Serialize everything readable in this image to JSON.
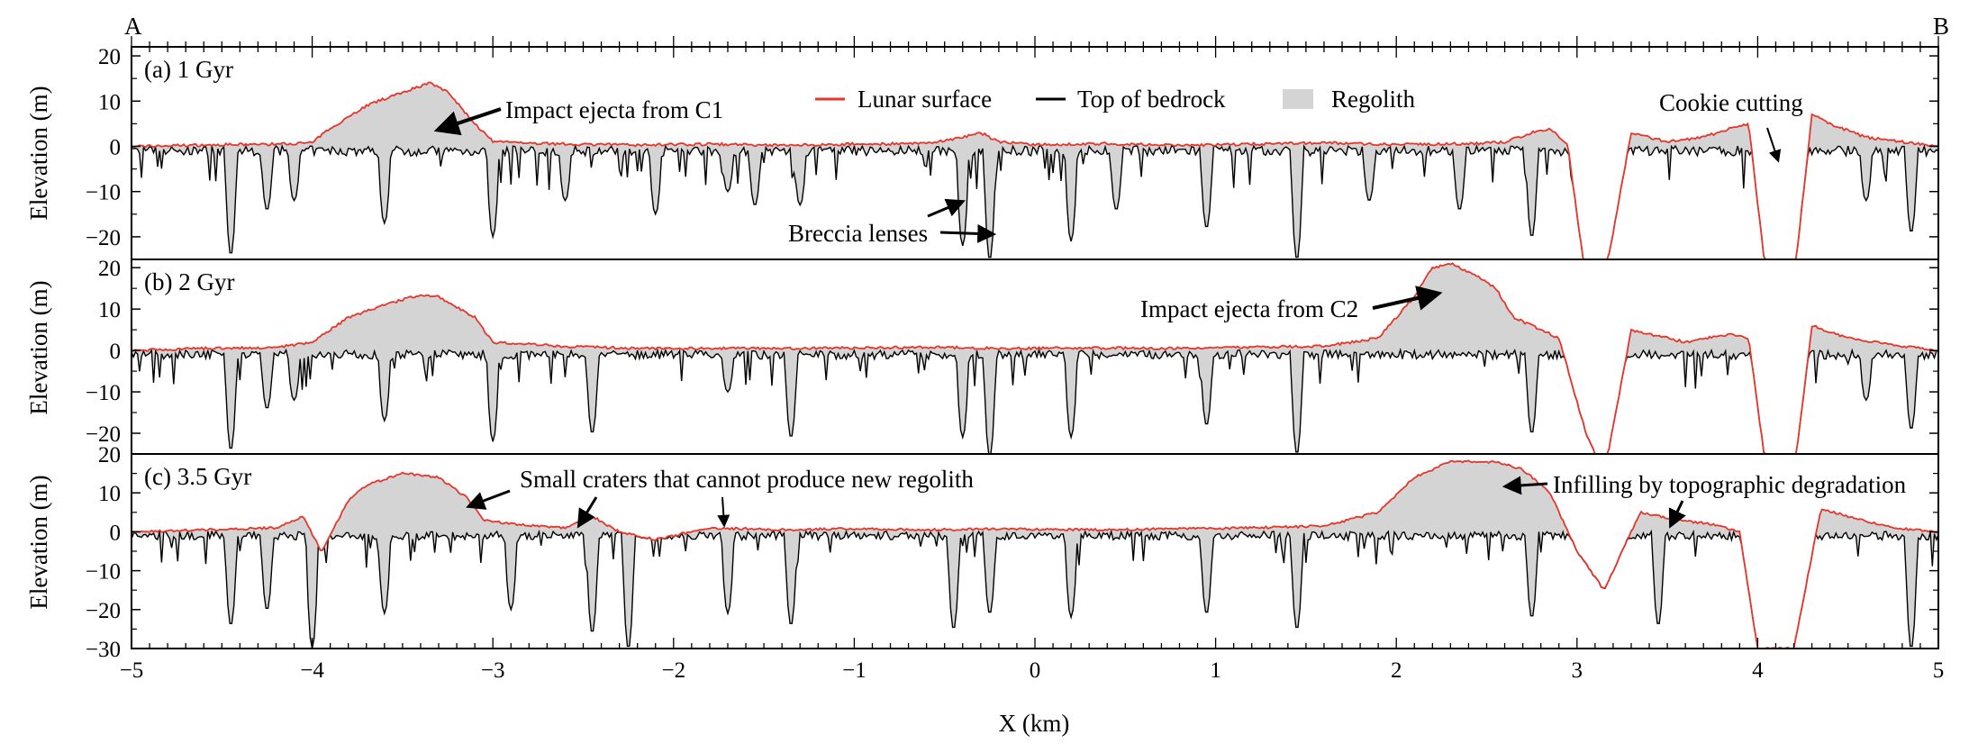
{
  "corner_labels": {
    "left": "A",
    "right": "B"
  },
  "legend": {
    "surface": "Lunar surface",
    "bedrock": "Top of bedrock",
    "regolith": "Regolith"
  },
  "colors": {
    "surface": "#e8352a",
    "bedrock": "#000000",
    "regolith": "#d4d4d4"
  },
  "axes": {
    "x_label": "X (km)",
    "y_label": "Elevation (m)",
    "x_ticks": [
      "−5",
      "−4",
      "−3",
      "−2",
      "−1",
      "0",
      "1",
      "2",
      "3",
      "4",
      "5"
    ]
  },
  "panels": [
    {
      "label": "(a) 1 Gyr",
      "y_ticks": [
        "20",
        "10",
        "0",
        "−10",
        "−20"
      ],
      "annotations": [
        {
          "text": "Impact ejecta from C1"
        },
        {
          "text": "Breccia lenses"
        },
        {
          "text": "Cookie cutting"
        }
      ]
    },
    {
      "label": "(b) 2 Gyr",
      "y_ticks": [
        "20",
        "10",
        "0",
        "−10",
        "−20"
      ],
      "annotations": [
        {
          "text": "Impact ejecta from C2"
        }
      ]
    },
    {
      "label": "(c) 3.5 Gyr",
      "y_ticks": [
        "20",
        "10",
        "0",
        "−10",
        "−20",
        "−30"
      ],
      "annotations": [
        {
          "text": "Small craters that cannot produce new regolith"
        },
        {
          "text": "Infilling by topographic degradation"
        }
      ]
    }
  ],
  "chart_data": {
    "type": "area",
    "xlabel": "X (km)",
    "ylabel": "Elevation (m)",
    "xlim": [
      -5,
      5
    ],
    "ylim": [
      -30,
      22
    ],
    "series_names": [
      "Lunar surface",
      "Top of bedrock",
      "Regolith"
    ],
    "panels": [
      {
        "time": "1 Gyr",
        "surface": {
          "x": [
            -5,
            -4.6,
            -4.2,
            -4.0,
            -3.9,
            -3.7,
            -3.5,
            -3.35,
            -3.25,
            -3.1,
            -3.0,
            -2.6,
            -2.2,
            -1.8,
            -1.4,
            -1.0,
            -0.6,
            -0.4,
            -0.3,
            -0.2,
            0,
            0.4,
            0.8,
            1.2,
            1.6,
            2.0,
            2.4,
            2.6,
            2.75,
            2.85,
            2.95,
            3.05,
            3.15,
            3.3,
            3.5,
            3.7,
            3.85,
            3.95,
            4.05,
            4.12,
            4.2,
            4.3,
            4.4,
            4.6,
            4.8,
            5
          ],
          "y": [
            0,
            0.3,
            0.5,
            0.8,
            4,
            9,
            12,
            14,
            12,
            5,
            1,
            0.5,
            0.3,
            0.5,
            0.2,
            0.5,
            0.6,
            2,
            3,
            1,
            0.3,
            0.6,
            0.2,
            0.5,
            0.8,
            0.4,
            0.6,
            0.9,
            3,
            4,
            0,
            -30,
            -30,
            3,
            1,
            2,
            4,
            5,
            -30,
            -30,
            -30,
            7,
            5,
            2,
            1,
            0
          ]
        },
        "bedrock_craters": [
          {
            "x": -4.45,
            "depth": -24
          },
          {
            "x": -4.25,
            "depth": -14
          },
          {
            "x": -4.1,
            "depth": -12
          },
          {
            "x": -3.6,
            "depth": -17
          },
          {
            "x": -3.0,
            "depth": -20
          },
          {
            "x": -2.6,
            "depth": -12
          },
          {
            "x": -2.1,
            "depth": -15
          },
          {
            "x": -1.7,
            "depth": -10
          },
          {
            "x": -1.55,
            "depth": -13
          },
          {
            "x": -1.3,
            "depth": -13
          },
          {
            "x": -0.4,
            "depth": -22
          },
          {
            "x": -0.25,
            "depth": -25
          },
          {
            "x": 0.2,
            "depth": -21
          },
          {
            "x": 0.45,
            "depth": -14
          },
          {
            "x": 0.95,
            "depth": -18
          },
          {
            "x": 1.45,
            "depth": -25
          },
          {
            "x": 1.85,
            "depth": -12
          },
          {
            "x": 2.35,
            "depth": -14
          },
          {
            "x": 2.75,
            "depth": -20
          },
          {
            "x": 4.6,
            "depth": -12
          },
          {
            "x": 4.85,
            "depth": -19
          }
        ]
      },
      {
        "time": "2 Gyr",
        "surface": {
          "x": [
            -5,
            -4.6,
            -4.2,
            -4.0,
            -3.8,
            -3.6,
            -3.4,
            -3.3,
            -3.1,
            -3.0,
            -2.6,
            -2.2,
            -1.8,
            -1.4,
            -1.0,
            -0.6,
            -0.2,
            0.4,
            0.8,
            1.2,
            1.6,
            1.9,
            2.1,
            2.2,
            2.3,
            2.45,
            2.55,
            2.65,
            2.75,
            2.9,
            3.05,
            3.15,
            3.3,
            3.6,
            3.85,
            3.95,
            4.05,
            4.2,
            4.3,
            4.5,
            4.8,
            5
          ],
          "y": [
            0,
            0.5,
            0.7,
            2,
            8,
            11,
            13.5,
            13,
            8,
            2,
            1,
            0.5,
            0.5,
            0.5,
            0.6,
            0.8,
            0.5,
            0.6,
            0.5,
            0.8,
            1.0,
            3,
            13,
            20,
            21,
            18,
            15,
            8,
            6,
            3,
            -20,
            -30,
            5,
            2,
            4,
            3,
            -30,
            -30,
            6,
            3,
            1,
            0
          ]
        },
        "bedrock_craters": [
          {
            "x": -4.45,
            "depth": -24
          },
          {
            "x": -4.25,
            "depth": -14
          },
          {
            "x": -4.1,
            "depth": -12
          },
          {
            "x": -3.6,
            "depth": -17
          },
          {
            "x": -3.0,
            "depth": -22
          },
          {
            "x": -2.45,
            "depth": -20
          },
          {
            "x": -1.7,
            "depth": -10
          },
          {
            "x": -1.35,
            "depth": -21
          },
          {
            "x": -0.4,
            "depth": -21
          },
          {
            "x": -0.25,
            "depth": -26
          },
          {
            "x": 0.2,
            "depth": -21
          },
          {
            "x": 0.95,
            "depth": -18
          },
          {
            "x": 1.45,
            "depth": -25
          },
          {
            "x": 2.75,
            "depth": -20
          },
          {
            "x": 4.6,
            "depth": -12
          },
          {
            "x": 4.85,
            "depth": -19
          }
        ]
      },
      {
        "time": "3.5 Gyr",
        "surface": {
          "x": [
            -5,
            -4.6,
            -4.2,
            -4.05,
            -3.95,
            -3.8,
            -3.7,
            -3.5,
            -3.3,
            -3.15,
            -3.05,
            -2.9,
            -2.6,
            -2.45,
            -2.3,
            -2.1,
            -1.8,
            -1.4,
            -1.0,
            -0.6,
            -0.2,
            0.4,
            0.8,
            1.2,
            1.6,
            1.9,
            2.1,
            2.3,
            2.55,
            2.7,
            2.85,
            3.0,
            3.15,
            3.35,
            3.55,
            3.75,
            3.9,
            4.0,
            4.2,
            4.35,
            4.5,
            4.75,
            5
          ],
          "y": [
            0,
            0.5,
            1,
            4,
            -5,
            8,
            12,
            15,
            14,
            9,
            3,
            2,
            1,
            4,
            0,
            -2,
            1,
            0.5,
            0.8,
            0.5,
            0.7,
            0.5,
            0.8,
            1,
            1.5,
            5,
            14,
            18,
            18,
            16,
            10,
            -5,
            -15,
            5,
            3,
            2,
            0,
            -30,
            -30,
            6,
            4,
            1,
            0
          ]
        },
        "bedrock_craters": [
          {
            "x": -4.45,
            "depth": -24
          },
          {
            "x": -4.25,
            "depth": -20
          },
          {
            "x": -4.0,
            "depth": -30
          },
          {
            "x": -3.6,
            "depth": -21
          },
          {
            "x": -2.9,
            "depth": -20
          },
          {
            "x": -2.45,
            "depth": -26
          },
          {
            "x": -2.25,
            "depth": -30
          },
          {
            "x": -1.7,
            "depth": -21
          },
          {
            "x": -1.35,
            "depth": -24
          },
          {
            "x": -0.45,
            "depth": -25
          },
          {
            "x": -0.25,
            "depth": -21
          },
          {
            "x": 0.2,
            "depth": -22
          },
          {
            "x": 0.95,
            "depth": -21
          },
          {
            "x": 1.45,
            "depth": -25
          },
          {
            "x": 2.75,
            "depth": -22
          },
          {
            "x": 3.45,
            "depth": -24
          },
          {
            "x": 4.85,
            "depth": -30
          }
        ]
      }
    ]
  }
}
